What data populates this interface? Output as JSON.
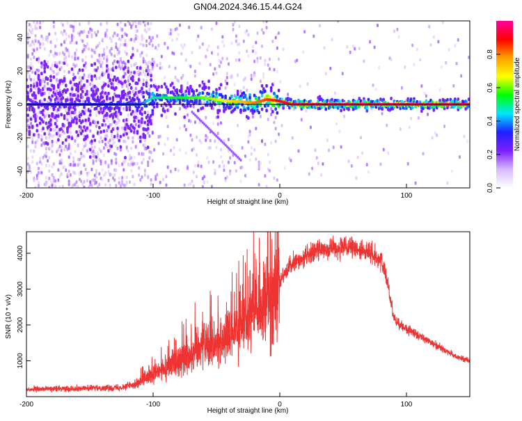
{
  "title": "GN04.2024.346.15.44.G24",
  "chart_data": [
    {
      "type": "heatmap",
      "xlabel": "Height of straight line (km)",
      "ylabel": "Frequency (Hz)",
      "xlim": [
        -200,
        150
      ],
      "ylim": [
        -50,
        50
      ],
      "xticks": [
        -200,
        -100,
        0,
        100
      ],
      "yticks": [
        -40,
        -20,
        0,
        20,
        40
      ],
      "colorbar": {
        "label": "Normalized spectral amplitude",
        "range": [
          0,
          1
        ],
        "ticks": [
          "0.0",
          "0.2",
          "0.4",
          "0.6",
          "0.8"
        ],
        "colors": [
          "#ffffff",
          "#d7b8ff",
          "#7d1fff",
          "#2020ff",
          "#00e5ff",
          "#00ff00",
          "#ffff00",
          "#ffa000",
          "#ff0000",
          "#ff00a0"
        ]
      },
      "ridge": {
        "description_points": [
          {
            "x": -200,
            "freq": 0,
            "amp": 0.3
          },
          {
            "x": -110,
            "freq": 0,
            "amp": 0.35
          },
          {
            "x": -100,
            "freq": 4,
            "amp": 0.5
          },
          {
            "x": -80,
            "freq": 4,
            "amp": 0.55
          },
          {
            "x": -60,
            "freq": 4,
            "amp": 0.6
          },
          {
            "x": -40,
            "freq": 2,
            "amp": 0.7
          },
          {
            "x": -20,
            "freq": 1,
            "amp": 0.8
          },
          {
            "x": -10,
            "freq": 3,
            "amp": 0.85
          },
          {
            "x": 0,
            "freq": 2,
            "amp": 0.9
          },
          {
            "x": 10,
            "freq": 0,
            "amp": 0.95
          },
          {
            "x": 150,
            "freq": 0,
            "amp": 0.95
          }
        ]
      }
    },
    {
      "type": "line",
      "xlabel": "Height of straight line (km)",
      "ylabel": "SNR (10 * v/v)",
      "xlim": [
        -200,
        150
      ],
      "ylim": [
        0,
        4600
      ],
      "xticks": [
        -200,
        -100,
        0,
        100
      ],
      "yticks": [
        1000,
        2000,
        3000,
        4000
      ],
      "color": "#ee3333",
      "series": [
        {
          "x": [
            -200,
            -180,
            -160,
            -140,
            -125,
            -110,
            -100,
            -90,
            -80,
            -70,
            -62,
            -55,
            -50,
            -45,
            -40,
            -35,
            -30,
            -25,
            -20,
            -15,
            -10,
            -5,
            0,
            5,
            10,
            20,
            30,
            40,
            50,
            60,
            70,
            80,
            85,
            90,
            95,
            100,
            110,
            120,
            130,
            140,
            150
          ],
          "values": [
            200,
            220,
            230,
            240,
            260,
            400,
            600,
            800,
            1000,
            1200,
            1500,
            1500,
            1400,
            1600,
            1700,
            1800,
            2000,
            2200,
            2400,
            2300,
            2600,
            3000,
            3200,
            3500,
            3700,
            3900,
            4100,
            4150,
            4150,
            4100,
            4050,
            3800,
            3200,
            2200,
            2000,
            1900,
            1700,
            1500,
            1300,
            1100,
            1000
          ]
        }
      ]
    }
  ]
}
